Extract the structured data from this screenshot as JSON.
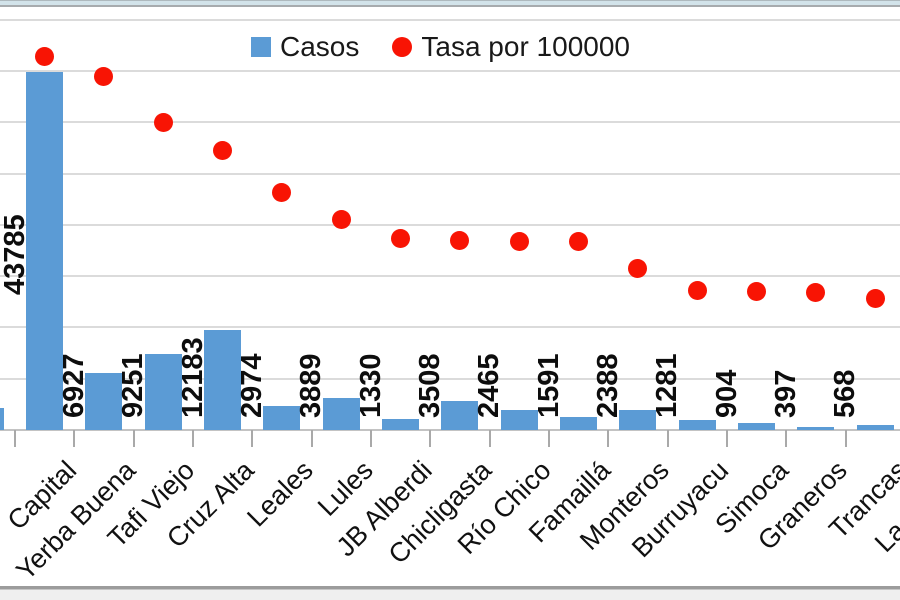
{
  "legend": {
    "items": [
      {
        "label": "Casos",
        "marker": "square",
        "color": "#5b9bd5"
      },
      {
        "label": "Tasa por 100000",
        "marker": "circle",
        "color": "#f81404"
      }
    ]
  },
  "chart_data": {
    "type": "bar",
    "subtype": "combo-bar-plus-scatter",
    "title": "",
    "xlabel": "",
    "ylabel": "",
    "grid": true,
    "legend_position": "top-center",
    "categories": [
      "Capital",
      "Yerba Buena",
      "Tafi Viejo",
      "Cruz Alta",
      "Leales",
      "Lules",
      "JB Alberdi",
      "Chicligasta",
      "Río Chico",
      "Famaillá",
      "Monteros",
      "Burruyacu",
      "Simoca",
      "Graneros",
      "Trancas",
      "La Cocha"
    ],
    "series": [
      {
        "name": "Casos",
        "type": "bar",
        "color": "#5b9bd5",
        "axis": "primary",
        "data_labels_shown": true,
        "values": [
          43785,
          6927,
          9251,
          12183,
          2974,
          3889,
          1330,
          3508,
          2465,
          1591,
          2388,
          1281,
          904,
          397,
          568,
          null
        ]
      },
      {
        "name": "Tasa por 100000",
        "type": "scatter",
        "color": "#f81404",
        "axis": "secondary",
        "values_estimated_from_dot_positions": true,
        "values": [
          7290,
          6900,
          6000,
          5450,
          4630,
          4100,
          3730,
          3690,
          3680,
          3670,
          3140,
          2710,
          2700,
          2690,
          2570,
          null
        ]
      }
    ],
    "clipped_left_partial_bar": {
      "casos_estimated": 2700
    },
    "crop_note": "Chart image is cropped: y-axes not visible; first letter of 'Capital', last category 'La Cocha' bar/dot, and an extra left bar are cut at the edges."
  }
}
